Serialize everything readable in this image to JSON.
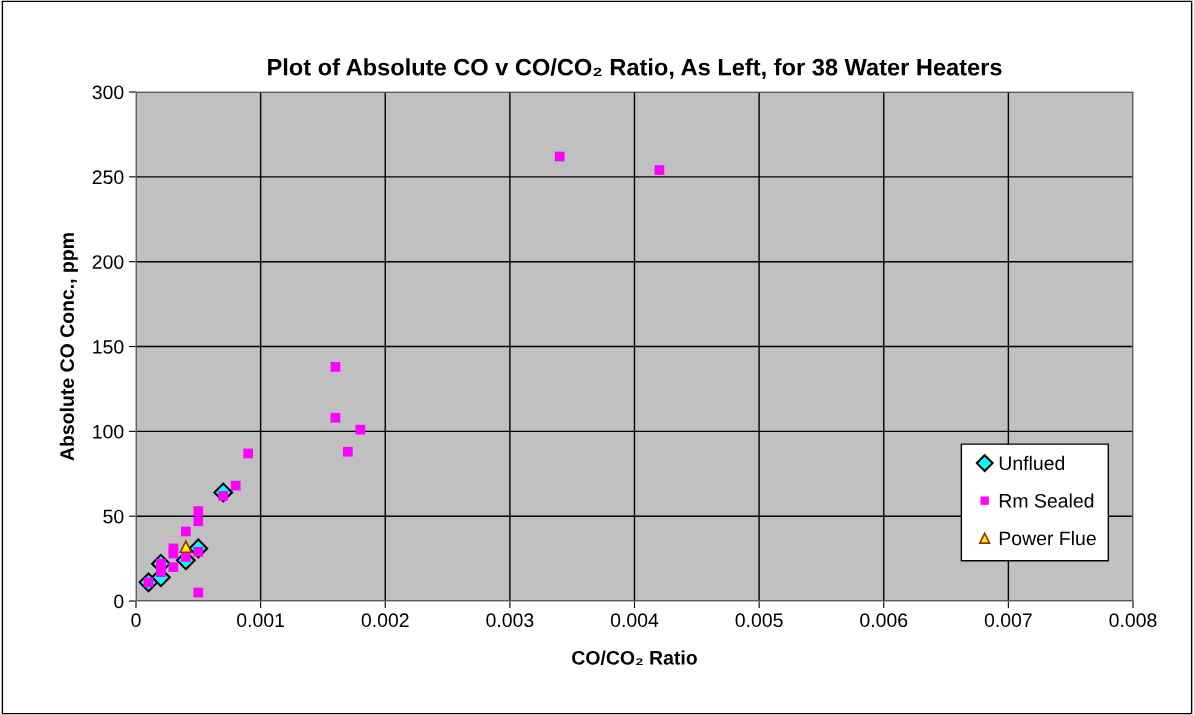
{
  "chart_data": {
    "type": "scatter",
    "title": "Plot of Absolute CO v CO/CO₂ Ratio, As Left, for 38 Water Heaters",
    "xlabel": "CO/CO₂ Ratio",
    "ylabel": "Absolute CO Conc., ppm",
    "xlim": [
      0,
      0.008
    ],
    "xticks": [
      0,
      0.001,
      0.002,
      0.003,
      0.004,
      0.005,
      0.006,
      0.007,
      0.008
    ],
    "ylim": [
      0,
      300
    ],
    "yticks": [
      0,
      50,
      100,
      150,
      200,
      250,
      300
    ],
    "grid": true,
    "legend": "bottom right",
    "series": [
      {
        "name": "Unflued",
        "color": "#00ffff",
        "marker": "diamond",
        "x": [
          0.0001,
          0.0002,
          0.0002,
          0.0004,
          0.0005,
          0.0007
        ],
        "values": [
          11,
          14,
          22,
          24,
          31,
          64
        ]
      },
      {
        "name": "Rm Sealed",
        "color": "#ff00ff",
        "marker": "square",
        "x": [
          0.0001,
          0.0002,
          0.0002,
          0.0003,
          0.0003,
          0.0003,
          0.0004,
          0.0004,
          0.0005,
          0.0005,
          0.0005,
          0.0005,
          0.0007,
          0.0008,
          0.0009,
          0.0016,
          0.0016,
          0.0017,
          0.0018,
          0.0034,
          0.0042
        ],
        "values": [
          11,
          22,
          17,
          31,
          28,
          20,
          41,
          26,
          53,
          47,
          29,
          5,
          62,
          68,
          87,
          138,
          108,
          88,
          101,
          262,
          254
        ]
      },
      {
        "name": "Power Flue",
        "color": "#ffff00",
        "marker": "triangle",
        "x": [
          0.0004
        ],
        "values": [
          32
        ]
      }
    ]
  }
}
